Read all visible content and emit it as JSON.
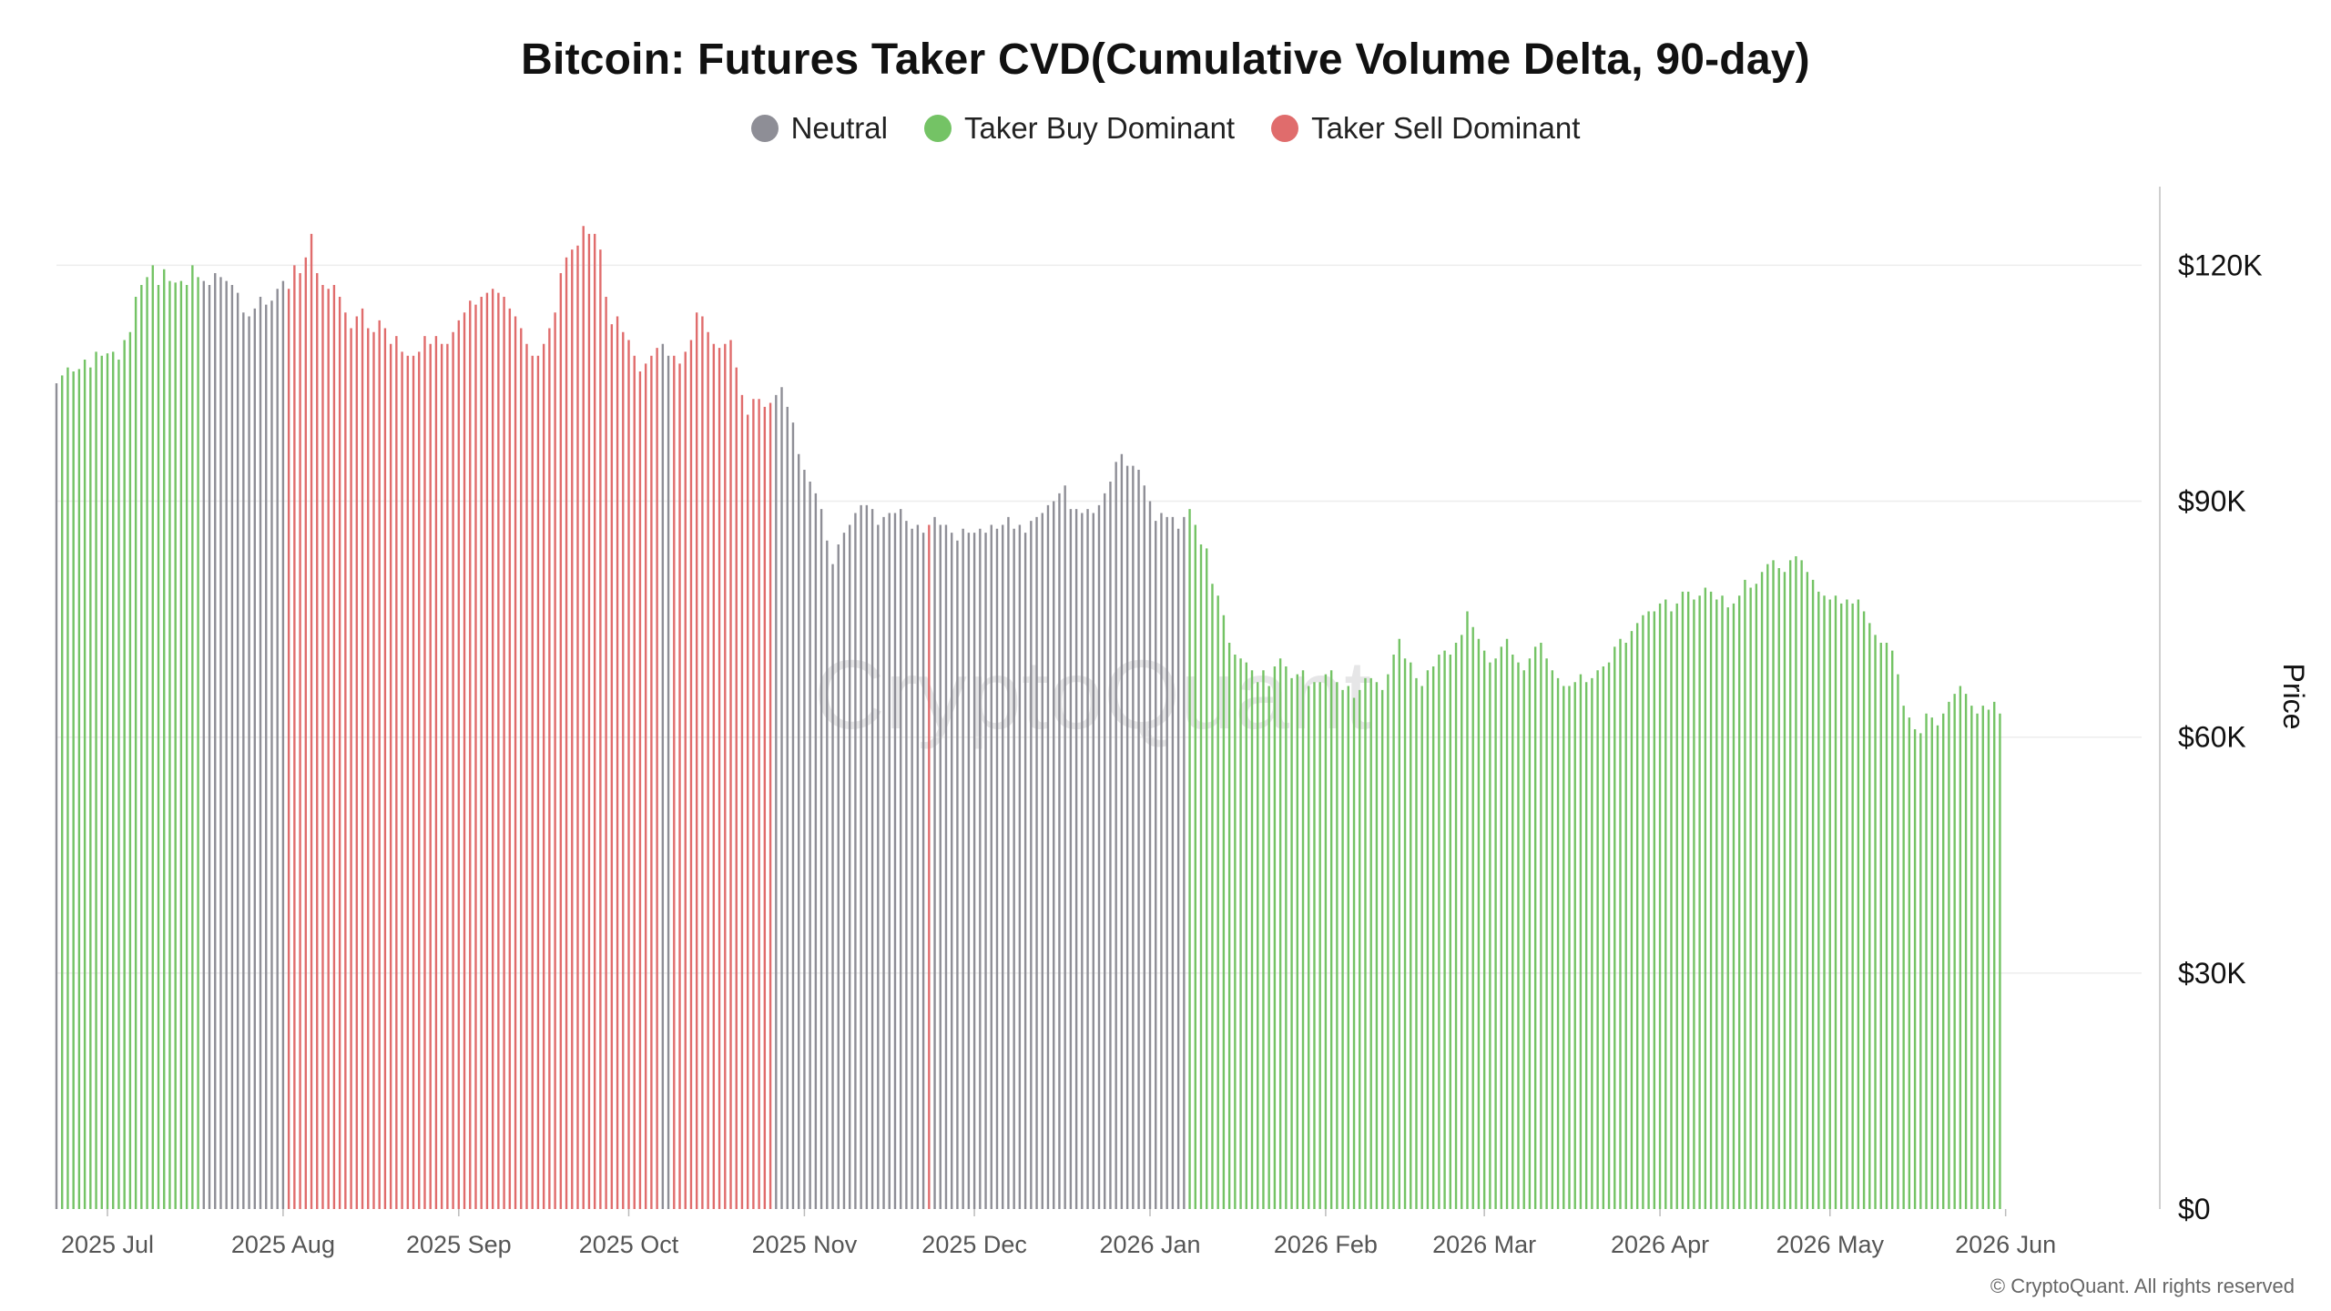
{
  "chart_data": {
    "type": "bar",
    "title": "Bitcoin: Futures Taker CVD(Cumulative Volume Delta, 90-day)",
    "ylabel": "Price",
    "xlabel": "",
    "ylim": [
      0,
      130000
    ],
    "y_ticks": [
      0,
      30000,
      60000,
      90000,
      120000
    ],
    "y_tick_labels": [
      "$0",
      "$30K",
      "$60K",
      "$90K",
      "$120K"
    ],
    "x_ticks": [
      "2025-07-01",
      "2025-08-01",
      "2025-09-01",
      "2025-10-01",
      "2025-11-01",
      "2025-12-01",
      "2026-01-01",
      "2026-02-01",
      "2026-03-01",
      "2026-04-01",
      "2026-05-01",
      "2026-06-01"
    ],
    "x_tick_labels": [
      "2025 Jul",
      "2025 Aug",
      "2025 Sep",
      "2025 Oct",
      "2025 Nov",
      "2025 Dec",
      "2026 Jan",
      "2026 Feb",
      "2026 Mar",
      "2026 Apr",
      "2026 May",
      "2026 Jun"
    ],
    "x_range": [
      "2025-06-22",
      "2026-06-25"
    ],
    "grid": true,
    "legend_position": "top-center",
    "series_legend": [
      {
        "name": "Neutral",
        "color": "#8e8e96"
      },
      {
        "name": "Taker Buy Dominant",
        "color": "#74c365"
      },
      {
        "name": "Taker Sell Dominant",
        "color": "#e06c6c"
      }
    ],
    "date_start": "2025-06-22",
    "date_step_days": 1,
    "values": [
      105000,
      106000,
      107000,
      106500,
      106800,
      108000,
      107000,
      109000,
      108500,
      108800,
      109000,
      108000,
      110500,
      111500,
      116000,
      117500,
      118500,
      120000,
      117500,
      119500,
      118000,
      117800,
      118000,
      117500,
      120000,
      118500,
      118000,
      117500,
      119000,
      118500,
      118000,
      117500,
      116500,
      114000,
      113500,
      114500,
      116000,
      115000,
      115500,
      117000,
      118000,
      117000,
      120000,
      119000,
      121000,
      124000,
      119000,
      117500,
      117000,
      117500,
      116000,
      114000,
      112000,
      113500,
      114500,
      112000,
      111500,
      113000,
      112000,
      110000,
      111000,
      109000,
      108500,
      108500,
      109000,
      111000,
      110000,
      111000,
      110000,
      110000,
      111500,
      113000,
      114000,
      115500,
      115000,
      116000,
      116500,
      117000,
      116500,
      116000,
      114500,
      113500,
      112000,
      110000,
      108500,
      108500,
      110000,
      112000,
      114000,
      119000,
      121000,
      122000,
      122500,
      125000,
      124000,
      124000,
      122000,
      116000,
      112500,
      113500,
      111500,
      110500,
      108500,
      106500,
      107500,
      108500,
      109500,
      110000,
      108500,
      108500,
      107500,
      109000,
      110500,
      114000,
      113500,
      111500,
      110000,
      109500,
      110000,
      110500,
      107000,
      103500,
      101000,
      103000,
      103000,
      102000,
      102500,
      103500,
      104500,
      102000,
      100000,
      96000,
      94000,
      92500,
      91000,
      89000,
      85000,
      82000,
      84500,
      86000,
      87000,
      88500,
      89500,
      89500,
      89000,
      87000,
      88000,
      88500,
      88500,
      89000,
      87500,
      86500,
      87000,
      86000,
      87000,
      88000,
      87000,
      87000,
      86000,
      85000,
      86500,
      86000,
      86000,
      86500,
      86000,
      87000,
      86500,
      87000,
      88000,
      86500,
      87000,
      86000,
      87500,
      88000,
      88500,
      89500,
      90000,
      91000,
      92000,
      89000,
      89000,
      88500,
      89000,
      88500,
      89500,
      91000,
      92500,
      95000,
      96000,
      94500,
      94500,
      94000,
      92000,
      90000,
      87500,
      88500,
      88000,
      88000,
      86500,
      88000,
      89000,
      87000,
      84500,
      84000,
      79500,
      78000,
      75500,
      72000,
      70500,
      70000,
      69500,
      68500,
      67000,
      68500,
      66500,
      69000,
      70000,
      69000,
      67500,
      68000,
      68500,
      66500,
      67000,
      67000,
      68000,
      68500,
      67000,
      66000,
      66500,
      65000,
      66000,
      67500,
      67500,
      67000,
      66000,
      68000,
      70500,
      72500,
      70000,
      69500,
      67500,
      66500,
      68500,
      69000,
      70500,
      71000,
      70500,
      72000,
      73000,
      76000,
      74000,
      72500,
      71000,
      69500,
      70000,
      71500,
      72500,
      70500,
      69500,
      68500,
      70000,
      71500,
      72000,
      70000,
      68500,
      67500,
      66500,
      66500,
      67000,
      68000,
      67000,
      67500,
      68500,
      69000,
      69500,
      71500,
      72500,
      72000,
      73500,
      74500,
      75500,
      76000,
      76000,
      77000,
      77500,
      76000,
      77000,
      78500,
      78500,
      77500,
      78000,
      79000,
      78500,
      77500,
      78000,
      76500,
      77000,
      78000,
      80000,
      79000,
      79500,
      81000,
      82000,
      82500,
      81500,
      81000,
      82500,
      83000,
      82500,
      81000,
      80000,
      78500,
      78000,
      77500,
      78000,
      77000,
      77500,
      77000,
      77500,
      76000,
      74500,
      73000,
      72000,
      72000,
      71000,
      68000,
      64000,
      62500,
      61000,
      60500,
      63000,
      62500,
      61500,
      63000,
      64500,
      65500,
      66500,
      65500,
      64000,
      63000,
      64000,
      63500,
      64500,
      63000
    ],
    "regimes": [
      {
        "from": "2025-06-22",
        "to": "2025-06-22",
        "label": "Neutral"
      },
      {
        "from": "2025-06-23",
        "to": "2025-07-17",
        "label": "Taker Buy Dominant"
      },
      {
        "from": "2025-07-18",
        "to": "2025-08-01",
        "label": "Neutral"
      },
      {
        "from": "2025-08-02",
        "to": "2025-10-06",
        "label": "Taker Sell Dominant"
      },
      {
        "from": "2025-10-07",
        "to": "2025-10-08",
        "label": "Neutral"
      },
      {
        "from": "2025-10-09",
        "to": "2025-10-26",
        "label": "Taker Sell Dominant"
      },
      {
        "from": "2025-10-27",
        "to": "2025-11-22",
        "label": "Neutral"
      },
      {
        "from": "2025-11-23",
        "to": "2025-11-23",
        "label": "Taker Sell Dominant"
      },
      {
        "from": "2025-11-24",
        "to": "2026-01-07",
        "label": "Neutral"
      },
      {
        "from": "2026-01-08",
        "to": "2026-06-01",
        "label": "Taker Buy Dominant"
      },
      {
        "from": "2026-06-02",
        "to": "2026-06-25",
        "label": "Neutral"
      }
    ]
  },
  "watermark": "CryptoQuant",
  "copyright": "© CryptoQuant. All rights reserved"
}
